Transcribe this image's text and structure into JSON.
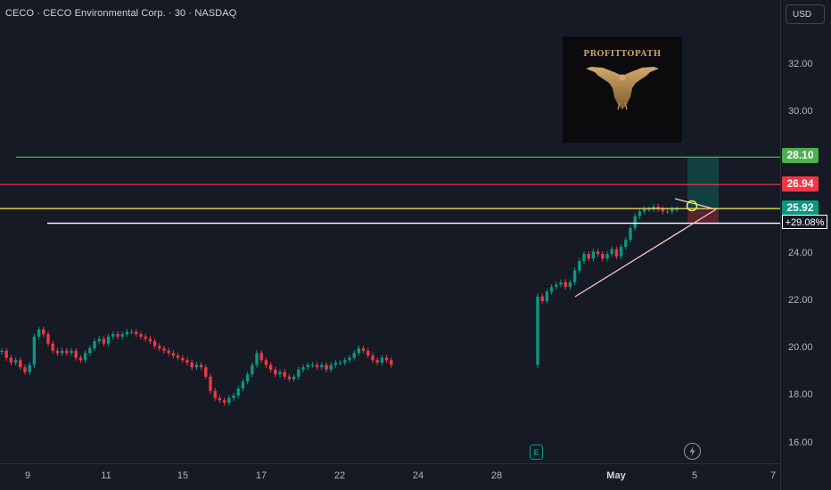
{
  "header": {
    "symbol_title": "CECO · CECO Environmental Corp. · 30 · NASDAQ",
    "currency": "USD"
  },
  "price_axis": {
    "ticks": [
      "32.00",
      "30.00",
      "24.00",
      "22.00",
      "20.00",
      "18.00",
      "16.00"
    ]
  },
  "time_axis": {
    "ticks": [
      "9",
      "11",
      "15",
      "17",
      "22",
      "24",
      "28",
      "May",
      "5",
      "7"
    ]
  },
  "levels": {
    "green_label": "28.10",
    "red_label": "26.94",
    "current_label": "25.92",
    "percent_label": "+29.08%"
  },
  "overlay": {
    "logo_text": "PROFITTOPATH"
  },
  "events": {
    "earnings_letter": "E"
  },
  "colors": {
    "background": "#161a25",
    "up_candle": "#089981",
    "down_candle": "#f23645",
    "green_line": "#4caf50",
    "red_line": "#f23645",
    "yellow_line": "#f7f05d",
    "white_line": "#ffffff",
    "trendline": "#f8c8c0"
  },
  "chart_data": {
    "type": "candlestick",
    "symbol": "CECO",
    "interval": "30",
    "ylim": [
      15.5,
      33.5
    ],
    "y_ticks": [
      16,
      18,
      20,
      22,
      24,
      30,
      32
    ],
    "horizontal_levels": [
      28.1,
      26.94,
      25.92,
      25.3
    ],
    "current_price": 25.92,
    "percent_change": "+29.08%",
    "close_series": [
      19.9,
      19.6,
      19.4,
      19.5,
      19.2,
      19.0,
      19.3,
      20.5,
      20.8,
      20.6,
      20.2,
      19.9,
      19.8,
      19.9,
      19.8,
      19.9,
      19.6,
      19.5,
      19.8,
      20.0,
      20.3,
      20.4,
      20.2,
      20.5,
      20.6,
      20.5,
      20.6,
      20.7,
      20.7,
      20.6,
      20.5,
      20.4,
      20.3,
      20.1,
      20.0,
      19.9,
      19.8,
      19.7,
      19.6,
      19.5,
      19.4,
      19.2,
      19.3,
      19.2,
      18.8,
      18.2,
      17.9,
      17.8,
      17.7,
      17.9,
      18.0,
      18.3,
      18.6,
      18.9,
      19.3,
      19.8,
      19.5,
      19.3,
      19.1,
      18.9,
      19.0,
      18.8,
      18.7,
      18.8,
      19.1,
      19.2,
      19.3,
      19.3,
      19.2,
      19.3,
      19.1,
      19.3,
      19.4,
      19.4,
      19.5,
      19.6,
      19.8,
      20.0,
      19.9,
      19.7,
      19.5,
      19.4,
      19.6,
      19.5,
      19.3,
      22.2,
      22.0,
      22.4,
      22.6,
      22.7,
      22.8,
      22.6,
      22.8,
      23.3,
      23.7,
      24.0,
      23.8,
      24.1,
      24.0,
      23.8,
      24.0,
      24.2,
      23.9,
      24.3,
      24.6,
      25.1,
      25.6,
      25.8,
      25.9,
      25.9,
      26.0,
      25.9,
      25.8,
      25.8,
      25.9,
      25.9
    ],
    "markers": [
      "E",
      "dividend"
    ]
  }
}
